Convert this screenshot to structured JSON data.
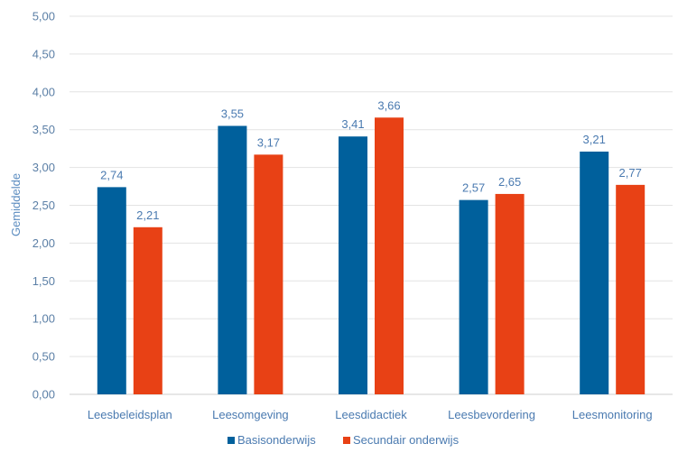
{
  "chart_data": {
    "type": "bar",
    "categories": [
      "Leesbeleidsplan",
      "Leesomgeving",
      "Leesdidactiek",
      "Leesbevordering",
      "Leesmonitoring"
    ],
    "series": [
      {
        "name": "Basisonderwijs",
        "values": [
          2.74,
          3.55,
          3.41,
          2.57,
          3.21
        ],
        "labels": [
          "2,74",
          "3,55",
          "3,41",
          "2,57",
          "3,21"
        ],
        "color": "#00609c"
      },
      {
        "name": "Secundair onderwijs",
        "values": [
          2.21,
          3.17,
          3.66,
          2.65,
          2.77
        ],
        "labels": [
          "2,21",
          "3,17",
          "3,66",
          "2,65",
          "2,77"
        ],
        "color": "#e84115"
      }
    ],
    "ylabel": "Gemiddelde",
    "xlabel": "",
    "ylim": [
      0,
      5
    ],
    "yticks": [
      "0,00",
      "0,50",
      "1,00",
      "1,50",
      "2,00",
      "2,50",
      "3,00",
      "3,50",
      "4,00",
      "4,50",
      "5,00"
    ],
    "grid": true,
    "legend_position": "bottom"
  }
}
